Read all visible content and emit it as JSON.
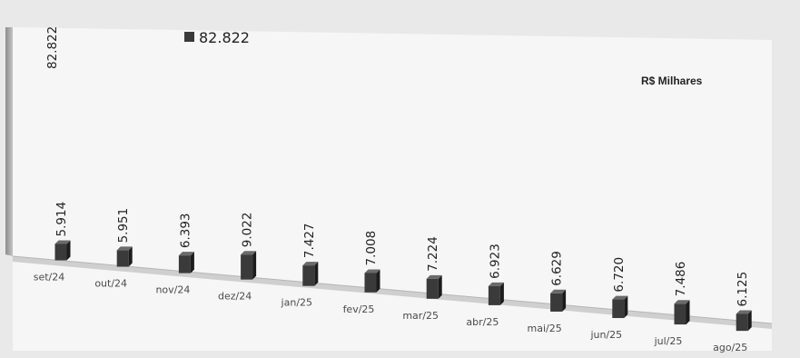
{
  "legend": {
    "value": "82.822"
  },
  "total_value": "82.822",
  "unit_label": "R$ Milhares",
  "colors": {
    "bar": "#3a3a3a",
    "bar_side": "#1c1c1c",
    "bar_top": "#6a6a6a",
    "axis": "#b5b5b5",
    "plot_bg": "#f6f6f6"
  },
  "chart_data": {
    "type": "bar",
    "title": "",
    "xlabel": "",
    "ylabel": "",
    "categories": [
      "set/24",
      "out/24",
      "nov/24",
      "dez/24",
      "jan/25",
      "fev/25",
      "mar/25",
      "abr/25",
      "mai/25",
      "jun/25",
      "jul/25",
      "ago/25"
    ],
    "values": [
      5914,
      5951,
      6393,
      9022,
      7427,
      7008,
      7224,
      6923,
      6629,
      6720,
      7486,
      6125
    ],
    "value_labels": [
      "5.914",
      "5.951",
      "6.393",
      "9.022",
      "7.427",
      "7.008",
      "7.224",
      "6.923",
      "6.629",
      "6.720",
      "7.486",
      "6.125"
    ],
    "total": 82822,
    "ylim": [
      0,
      82822
    ],
    "grid": false,
    "legend_position": "top"
  }
}
